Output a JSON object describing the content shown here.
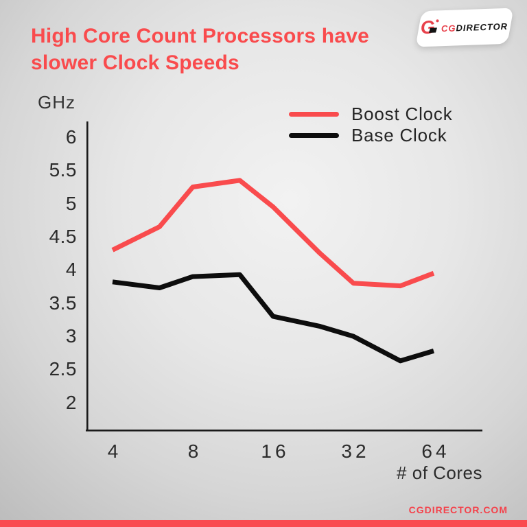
{
  "title": {
    "line1": "High Core Count Processors have",
    "line2": "slower Clock Speeds"
  },
  "logo": {
    "mark": "G",
    "cg": "CG",
    "director": "DIRECTOR"
  },
  "footer": {
    "site": "CGDIRECTOR.COM"
  },
  "colors": {
    "accent_red": "#F94B4D",
    "line_black": "#0d0d0d",
    "footer_bar_red": "#FA4B50",
    "text_dark": "#2b2b2b",
    "logo_red": "#E8414B"
  },
  "chart_data": {
    "type": "line",
    "title": "High Core Count Processors have slower Clock Speeds",
    "xlabel": "# of Cores",
    "ylabel": "GHz",
    "x_scale": "log2",
    "grid": false,
    "legend_position": "top-right",
    "x": [
      4,
      6,
      8,
      12,
      16,
      24,
      32,
      48,
      64
    ],
    "x_ticks": [
      4,
      8,
      16,
      32,
      64
    ],
    "y_ticks": [
      6,
      5.5,
      5,
      4.5,
      4,
      3.5,
      3,
      2.5,
      2
    ],
    "ylim": [
      2,
      6
    ],
    "series": [
      {
        "name": "Boost Clock",
        "color": "#F94B4D",
        "values": [
          4.3,
          4.65,
          5.25,
          5.35,
          4.95,
          4.25,
          3.8,
          3.76,
          3.95
        ]
      },
      {
        "name": "Base Clock",
        "color": "#0d0d0d",
        "values": [
          3.82,
          3.73,
          3.9,
          3.93,
          3.3,
          3.15,
          3.0,
          2.63,
          2.78
        ]
      }
    ]
  }
}
